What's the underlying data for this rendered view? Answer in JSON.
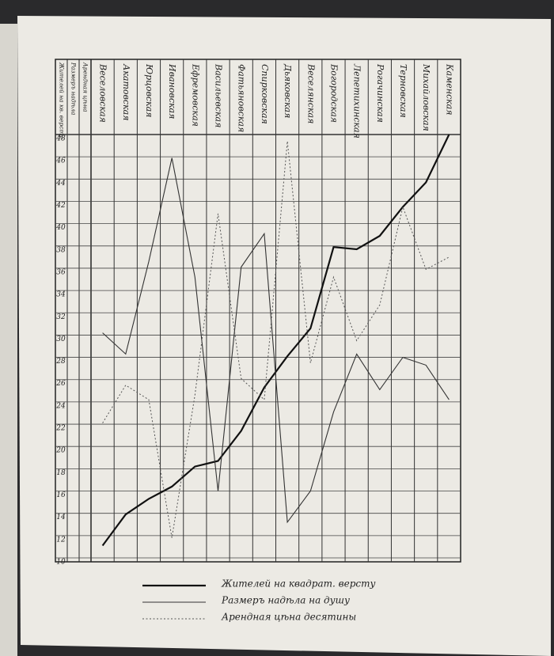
{
  "chart_data": {
    "type": "line",
    "categories": [
      "Веселовская",
      "Акатовская",
      "Юрцовская",
      "Ивановская",
      "Ефремовская",
      "Васильевская",
      "Фатьяновская",
      "Спирковская",
      "Дьяковская",
      "Веселянская",
      "Богородская",
      "Лепетихинская",
      "Рогачинская",
      "Терновская",
      "Михайловская",
      "Каменская"
    ],
    "axis_headers": [
      "Жителей на кв. версту",
      "Размеръ надѣла",
      "Арендная цѣна"
    ],
    "series": [
      {
        "name": "Жителей на квадрат. версту",
        "color": "#111111",
        "style": "thick",
        "values": [
          11.1,
          13.9,
          15.3,
          16.4,
          18.2,
          18.7,
          21.4,
          25.3,
          28.1,
          30.6,
          37.9,
          37.7,
          38.9,
          41.5,
          43.7,
          48
        ]
      },
      {
        "name": "Размеръ надѣла на душу",
        "color": "#333333",
        "style": "thin",
        "values": [
          30.2,
          28.3,
          36.6,
          45.9,
          35.2,
          16.0,
          36.1,
          39.1,
          13.2,
          16.0,
          23.1,
          28.3,
          25.1,
          28.0,
          27.3,
          24.2
        ]
      },
      {
        "name": "Арендная цѣна десятины",
        "color": "#555555",
        "style": "dotted",
        "values": [
          22.1,
          25.5,
          24.2,
          11.8,
          24.6,
          40.9,
          26.1,
          24.2,
          47.4,
          27.5,
          35.2,
          29.5,
          32.7,
          41.5,
          35.9,
          37.0
        ]
      }
    ],
    "ylim": [
      10,
      48
    ],
    "yticks": [
      10,
      12,
      14,
      16,
      18,
      20,
      22,
      24,
      26,
      28,
      30,
      32,
      34,
      36,
      38,
      40,
      42,
      44,
      46,
      48
    ],
    "grid": true
  }
}
